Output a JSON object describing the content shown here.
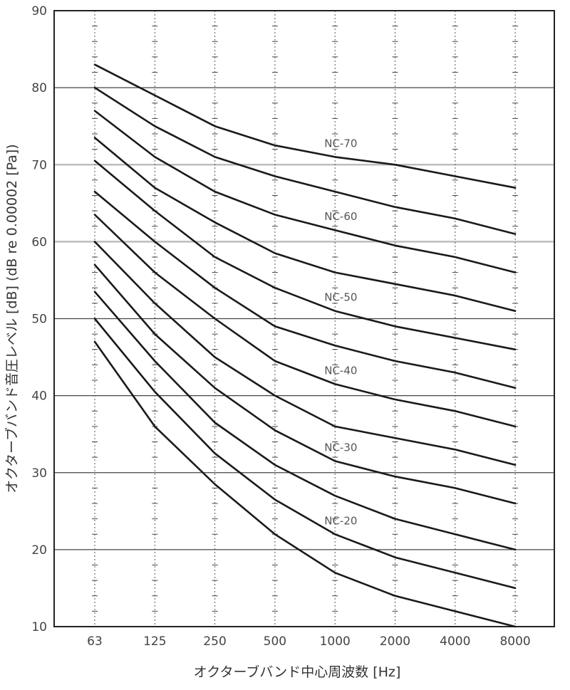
{
  "chart_data": {
    "type": "line",
    "title": "",
    "xlabel": "オクターブバンド中心周波数 [Hz]",
    "ylabel": "オクターブバンド音圧レベル [dB] (dB re 0.00002 [Pa])",
    "categories": [
      "63",
      "125",
      "250",
      "500",
      "1000",
      "2000",
      "4000",
      "8000"
    ],
    "ylim": [
      10,
      90
    ],
    "yticks": [
      10,
      20,
      30,
      40,
      50,
      60,
      70,
      80,
      90
    ],
    "grid": true,
    "accent_gridlines": [
      60,
      70
    ],
    "line_color": "#1a1a1a",
    "series": [
      {
        "label": "NC-70",
        "values": [
          83,
          79,
          75,
          72.5,
          71,
          70,
          68.5,
          67
        ]
      },
      {
        "label": "",
        "values": [
          80,
          75,
          71,
          68.5,
          66.5,
          64.5,
          63,
          61
        ]
      },
      {
        "label": "NC-60",
        "values": [
          77,
          71,
          66.5,
          63.5,
          61.5,
          59.5,
          58,
          56
        ]
      },
      {
        "label": "",
        "values": [
          73.5,
          67,
          62.5,
          58.5,
          56,
          54.5,
          53,
          51
        ]
      },
      {
        "label": "NC-50",
        "values": [
          70.5,
          64,
          58,
          54,
          51,
          49,
          47.5,
          46
        ]
      },
      {
        "label": "",
        "values": [
          66.5,
          60,
          54,
          49,
          46.5,
          44.5,
          43,
          41
        ]
      },
      {
        "label": "NC-40",
        "values": [
          63.5,
          56,
          50,
          44.5,
          41.5,
          39.5,
          38,
          36
        ]
      },
      {
        "label": "",
        "values": [
          60,
          52,
          45,
          40,
          36,
          34.5,
          33,
          31
        ]
      },
      {
        "label": "NC-30",
        "values": [
          57,
          48,
          41,
          35.5,
          31.5,
          29.5,
          28,
          26
        ]
      },
      {
        "label": "",
        "values": [
          53.5,
          44.5,
          36.5,
          31,
          27,
          24,
          22,
          20
        ]
      },
      {
        "label": "NC-20",
        "values": [
          50,
          40.5,
          32.5,
          26.5,
          22,
          19,
          17,
          15
        ]
      },
      {
        "label": "",
        "values": [
          47,
          36,
          28.5,
          22,
          17,
          14,
          12,
          10
        ]
      }
    ]
  }
}
